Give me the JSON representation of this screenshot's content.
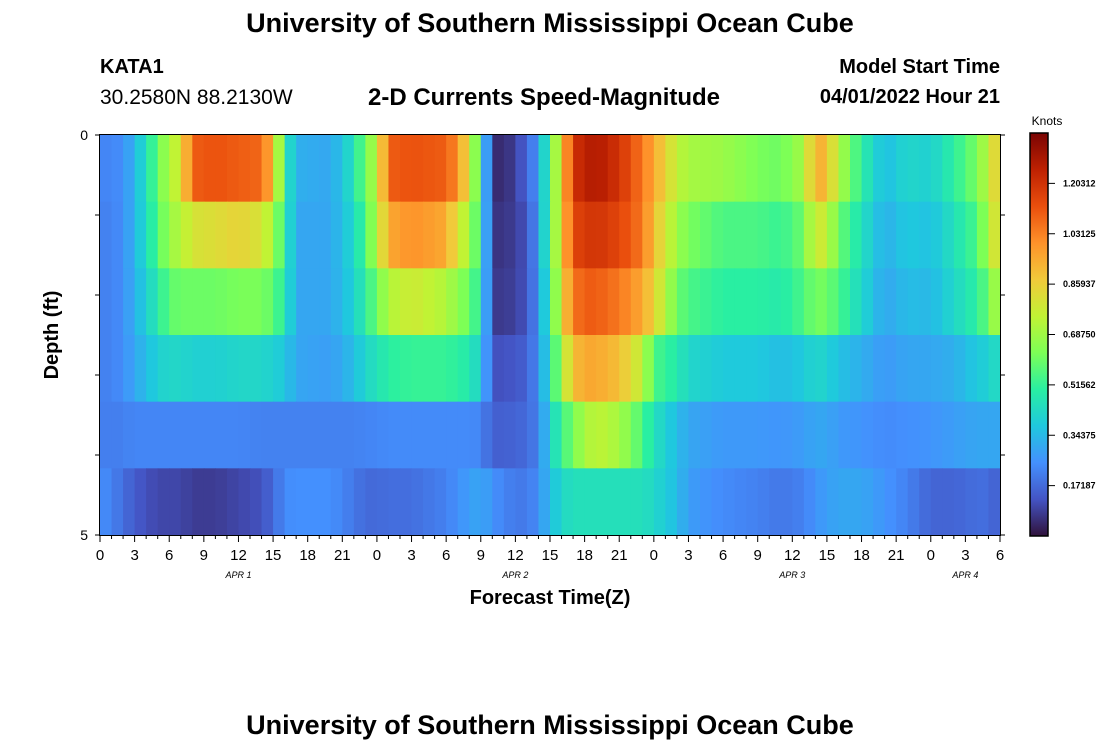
{
  "header": {
    "title": "University of Southern Mississippi Ocean Cube",
    "station_id": "KATA1",
    "station_coords": "30.2580N  88.2130W",
    "chart_subtitle": "2-D Currents Speed-Magnitude",
    "model_start_label": "Model Start Time",
    "model_start_value": "04/01/2022 Hour 21"
  },
  "footer": {
    "title": "University of Southern Mississippi Ocean Cube"
  },
  "colors": {
    "colormap": [
      "#30123b",
      "#4454c4",
      "#4490fe",
      "#1fc8de",
      "#29efa2",
      "#7dff56",
      "#c1f334",
      "#f1ca3a",
      "#fe922a",
      "#ea4f0d",
      "#be2102",
      "#7a0403"
    ]
  },
  "chart_data": {
    "type": "heatmap",
    "title": "2-D Currents Speed-Magnitude",
    "xlabel": "Forecast Time(Z)",
    "ylabel": "Depth (ft)",
    "colorbar_label": "Knots",
    "colorbar_ticks": [
      "1.20312",
      "1.03125",
      "0.85937",
      "0.68750",
      "0.51562",
      "0.34375",
      "0.17187"
    ],
    "colorbar_tick_values": [
      1.203125,
      1.03125,
      0.859375,
      0.6875,
      0.515625,
      0.34375,
      0.171875
    ],
    "value_range": [
      0,
      1.375
    ],
    "y_tick_labels": [
      "0",
      "5"
    ],
    "y_range": [
      0,
      5
    ],
    "depth_levels": [
      0,
      1,
      2,
      3,
      4,
      5
    ],
    "x_tick_labels": [
      "0",
      "3",
      "6",
      "9",
      "12",
      "15",
      "18",
      "21",
      "0",
      "3",
      "6",
      "9",
      "12",
      "15",
      "18",
      "21",
      "0",
      "3",
      "6",
      "9",
      "12",
      "15",
      "18",
      "21",
      "0",
      "3",
      "6"
    ],
    "date_labels": [
      "APR 1",
      "APR 2",
      "APR 3",
      "APR 4"
    ],
    "date_label_hours": [
      12,
      36,
      60,
      75
    ],
    "x_range_hours": [
      0,
      78
    ],
    "time_step_hours": 1,
    "keyframes_hours": [
      0,
      1,
      2,
      3,
      5,
      6,
      7,
      8,
      10,
      12,
      14,
      15,
      16,
      17,
      20,
      22,
      23,
      24,
      25,
      27,
      30,
      31,
      32,
      33,
      34,
      35,
      37,
      38,
      39,
      40,
      41,
      42,
      43,
      45,
      47,
      48,
      50,
      51,
      54,
      57,
      59,
      61,
      62,
      63,
      64,
      66,
      68,
      70,
      72,
      74,
      76,
      77,
      78
    ],
    "series": [
      {
        "name": "Depth 0 ft",
        "values": [
          0.23,
          0.23,
          0.25,
          0.33,
          0.58,
          0.72,
          0.78,
          1.1,
          1.12,
          1.1,
          1.08,
          0.9,
          0.5,
          0.32,
          0.3,
          0.45,
          0.62,
          0.72,
          1.1,
          1.12,
          1.1,
          1.0,
          0.8,
          0.5,
          0.06,
          0.04,
          0.15,
          0.28,
          0.55,
          0.85,
          1.2,
          1.25,
          1.28,
          1.2,
          1.05,
          0.95,
          0.75,
          0.7,
          0.68,
          0.62,
          0.6,
          0.7,
          0.95,
          0.9,
          0.72,
          0.5,
          0.35,
          0.42,
          0.4,
          0.5,
          0.62,
          0.75,
          0.9
        ]
      },
      {
        "name": "Depth 1 ft",
        "values": [
          0.22,
          0.22,
          0.25,
          0.33,
          0.55,
          0.68,
          0.72,
          0.8,
          0.82,
          0.85,
          0.8,
          0.7,
          0.5,
          0.3,
          0.3,
          0.42,
          0.55,
          0.72,
          0.95,
          1.0,
          0.95,
          0.8,
          0.7,
          0.5,
          0.07,
          0.06,
          0.12,
          0.27,
          0.55,
          0.85,
          1.15,
          1.18,
          1.2,
          1.15,
          1.05,
          0.9,
          0.68,
          0.62,
          0.55,
          0.55,
          0.52,
          0.6,
          0.8,
          0.75,
          0.6,
          0.45,
          0.32,
          0.38,
          0.36,
          0.45,
          0.55,
          0.7,
          0.88
        ]
      },
      {
        "name": "Depth 2 ft",
        "values": [
          0.22,
          0.22,
          0.25,
          0.32,
          0.48,
          0.58,
          0.6,
          0.6,
          0.6,
          0.62,
          0.62,
          0.58,
          0.48,
          0.3,
          0.3,
          0.4,
          0.5,
          0.6,
          0.72,
          0.78,
          0.72,
          0.65,
          0.6,
          0.48,
          0.08,
          0.07,
          0.12,
          0.26,
          0.5,
          0.82,
          1.05,
          1.1,
          1.1,
          1.05,
          0.95,
          0.85,
          0.6,
          0.55,
          0.5,
          0.5,
          0.48,
          0.55,
          0.62,
          0.6,
          0.55,
          0.42,
          0.3,
          0.35,
          0.34,
          0.42,
          0.5,
          0.6,
          0.75
        ]
      },
      {
        "name": "Depth 3 ft",
        "values": [
          0.22,
          0.22,
          0.25,
          0.3,
          0.4,
          0.42,
          0.42,
          0.4,
          0.4,
          0.42,
          0.42,
          0.4,
          0.38,
          0.3,
          0.28,
          0.35,
          0.42,
          0.45,
          0.5,
          0.52,
          0.52,
          0.5,
          0.48,
          0.4,
          0.12,
          0.12,
          0.15,
          0.25,
          0.45,
          0.7,
          0.9,
          0.95,
          0.95,
          0.9,
          0.75,
          0.55,
          0.48,
          0.42,
          0.38,
          0.38,
          0.35,
          0.38,
          0.42,
          0.4,
          0.36,
          0.32,
          0.27,
          0.3,
          0.3,
          0.32,
          0.38,
          0.4,
          0.45
        ]
      },
      {
        "name": "Depth 4 ft",
        "values": [
          0.22,
          0.21,
          0.22,
          0.23,
          0.23,
          0.23,
          0.23,
          0.23,
          0.23,
          0.23,
          0.22,
          0.22,
          0.22,
          0.22,
          0.22,
          0.22,
          0.23,
          0.23,
          0.24,
          0.24,
          0.24,
          0.24,
          0.24,
          0.23,
          0.15,
          0.15,
          0.17,
          0.22,
          0.4,
          0.52,
          0.62,
          0.7,
          0.75,
          0.7,
          0.55,
          0.45,
          0.35,
          0.3,
          0.27,
          0.27,
          0.26,
          0.28,
          0.3,
          0.3,
          0.27,
          0.26,
          0.24,
          0.25,
          0.26,
          0.28,
          0.3,
          0.3,
          0.3
        ]
      },
      {
        "name": "Depth 5 ft",
        "values": [
          0.25,
          0.22,
          0.18,
          0.14,
          0.1,
          0.1,
          0.1,
          0.08,
          0.08,
          0.1,
          0.12,
          0.17,
          0.24,
          0.25,
          0.25,
          0.2,
          0.17,
          0.17,
          0.18,
          0.18,
          0.22,
          0.25,
          0.28,
          0.3,
          0.26,
          0.22,
          0.2,
          0.25,
          0.35,
          0.42,
          0.45,
          0.45,
          0.45,
          0.45,
          0.45,
          0.42,
          0.35,
          0.28,
          0.24,
          0.22,
          0.2,
          0.22,
          0.26,
          0.28,
          0.3,
          0.3,
          0.26,
          0.22,
          0.16,
          0.16,
          0.18,
          0.18,
          0.14
        ]
      }
    ]
  }
}
